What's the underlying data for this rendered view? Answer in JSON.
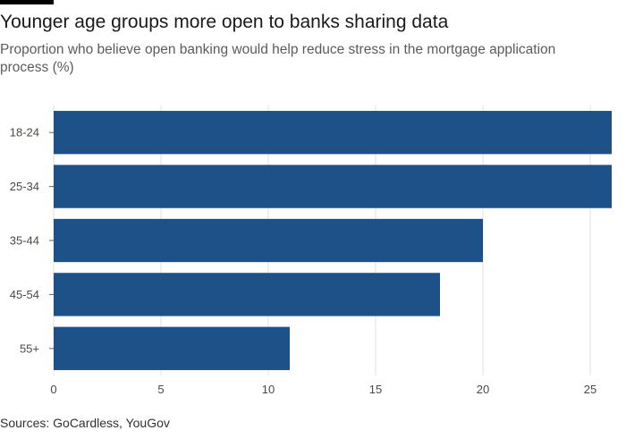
{
  "header": {
    "title": "Younger age groups more open to banks sharing data",
    "subtitle": "Proportion who believe open banking would help reduce stress in the mortgage application process (%)"
  },
  "footer": {
    "source": "Sources: GoCardless, YouGov"
  },
  "colors": {
    "bar": "#1f5189",
    "grid": "#e6e1dc",
    "axis": "#66605c",
    "accent_bar": "#000000"
  },
  "chart_data": {
    "type": "bar",
    "orientation": "horizontal",
    "categories": [
      "18-24",
      "25-34",
      "35-44",
      "45-54",
      "55+"
    ],
    "values": [
      26,
      26,
      20,
      18,
      11
    ],
    "xlim": [
      0,
      26
    ],
    "xticks": [
      0,
      5,
      10,
      15,
      20,
      25
    ],
    "grid": true,
    "title": "Younger age groups more open to banks sharing data",
    "subtitle": "Proportion who believe open banking would help reduce stress in the mortgage application process (%)",
    "xlabel": "",
    "ylabel": ""
  }
}
